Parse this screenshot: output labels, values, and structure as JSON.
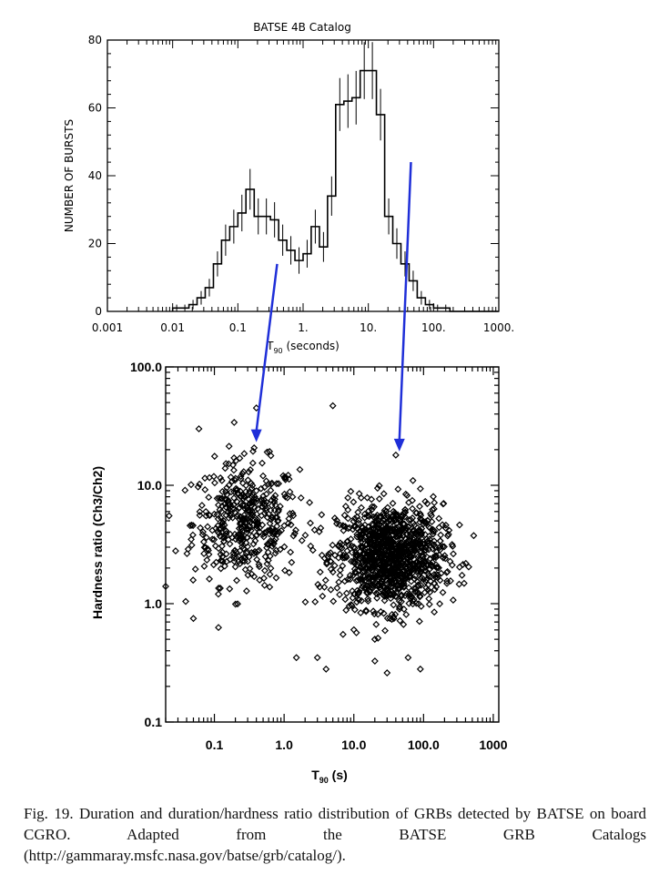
{
  "caption": "Fig. 19. Duration and duration/hardness ratio distribution of GRBs detected by BATSE on board CGRO. Adapted from the BATSE GRB Catalogs (http://gammaray.msfc.nasa.gov/batse/grb/catalog/).",
  "colors": {
    "arrow": "#1f2fd8",
    "ink": "#000000"
  },
  "chart_data": [
    {
      "type": "bar",
      "title": "BATSE 4B Catalog",
      "xlabel_main": "T",
      "xlabel_sub": "90",
      "xlabel_rest": " (seconds)",
      "ylabel": "NUMBER OF BURSTS",
      "xscale": "log",
      "xlim": [
        0.001,
        1000
      ],
      "ylim": [
        0,
        80
      ],
      "xticks": [
        0.001,
        0.01,
        0.1,
        1,
        10,
        100,
        1000
      ],
      "xtick_labels": [
        "0.001",
        "0.01",
        "0.1",
        "1.",
        "10.",
        "100.",
        "1000."
      ],
      "yticks": [
        0,
        20,
        40,
        60,
        80
      ],
      "ytick_labels": [
        "0",
        "20",
        "40",
        "60",
        "80"
      ],
      "bin_edges": [
        0.01,
        0.0133,
        0.0178,
        0.0237,
        0.0316,
        0.0422,
        0.0562,
        0.075,
        0.1,
        0.133,
        0.178,
        0.237,
        0.316,
        0.422,
        0.562,
        0.75,
        1.0,
        1.33,
        1.78,
        2.37,
        3.16,
        4.22,
        5.62,
        7.5,
        10.0,
        13.3,
        17.8,
        23.7,
        31.6,
        42.2,
        56.2,
        75.0,
        100.0,
        133,
        178,
        237,
        316,
        422,
        562,
        750,
        1000
      ],
      "values": [
        1,
        1,
        2,
        4,
        7,
        14,
        21,
        25,
        29,
        36,
        28,
        28,
        27,
        21,
        18,
        15,
        17,
        25,
        19,
        34,
        61,
        62,
        63,
        71,
        71,
        58,
        28,
        20,
        14,
        9,
        4,
        2,
        1,
        1,
        0,
        0,
        0,
        0,
        0,
        0
      ],
      "errors": [
        1,
        1,
        1.4,
        2,
        2.6,
        3.7,
        4.6,
        5,
        5.4,
        6,
        5.3,
        5.3,
        5.2,
        4.6,
        4.2,
        3.9,
        4.1,
        5,
        4.4,
        5.8,
        7.8,
        7.9,
        7.9,
        8.4,
        8.4,
        7.6,
        5.3,
        4.5,
        3.7,
        3,
        2,
        1.4,
        1,
        1,
        0,
        0,
        0,
        0,
        0,
        0
      ],
      "arrows_at_x": [
        0.4,
        45
      ]
    },
    {
      "type": "scatter",
      "xlabel_main": "T",
      "xlabel_sub": "90",
      "xlabel_rest": " (s)",
      "ylabel": "Hardness ratio (Ch3/Ch2)",
      "xscale": "log",
      "yscale": "log",
      "xlim": [
        0.02,
        1200
      ],
      "ylim": [
        0.1,
        100
      ],
      "xticks": [
        0.1,
        1,
        10,
        100,
        1000
      ],
      "xtick_labels": [
        "0.1",
        "1.0",
        "10.0",
        "100.0",
        "1000"
      ],
      "yticks": [
        0.1,
        1,
        10,
        100
      ],
      "ytick_labels": [
        "0.1",
        "1.0",
        "10.0",
        "100.0"
      ],
      "marker": "open-diamond",
      "clusters": [
        {
          "name": "short",
          "n": 460,
          "log10_x_mean": -0.55,
          "log10_x_sd": 0.38,
          "log10_y_mean": 0.68,
          "log10_y_sd": 0.26
        },
        {
          "name": "long",
          "n": 1150,
          "log10_x_mean": 1.52,
          "log10_x_sd": 0.38,
          "log10_y_mean": 0.4,
          "log10_y_sd": 0.22
        }
      ],
      "outliers": [
        [
          0.4,
          45
        ],
        [
          5,
          47
        ],
        [
          0.06,
          30
        ],
        [
          0.02,
          1.4
        ],
        [
          0.05,
          0.75
        ],
        [
          1.5,
          0.35
        ],
        [
          3,
          0.35
        ],
        [
          4,
          0.28
        ],
        [
          30,
          0.26
        ],
        [
          90,
          0.28
        ],
        [
          60,
          0.35
        ],
        [
          20,
          0.5
        ],
        [
          7,
          0.55
        ],
        [
          40,
          18
        ]
      ],
      "arrows_at_x": [
        0.4,
        45
      ]
    }
  ]
}
